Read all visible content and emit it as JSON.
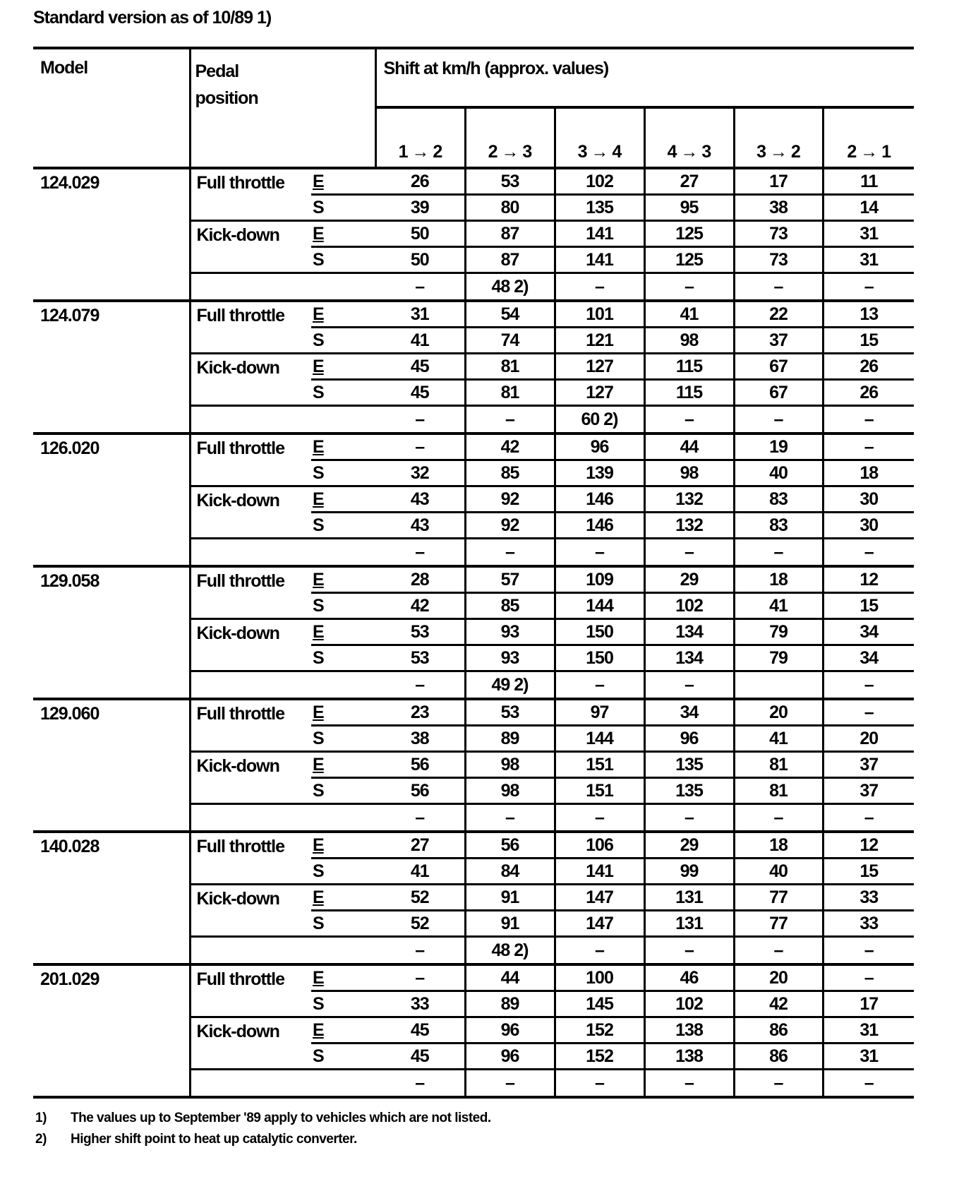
{
  "title": "Standard version as of 10/89 1)",
  "header": {
    "model": "Model",
    "pedal_line1": "Pedal",
    "pedal_line2": "position",
    "shift": "Shift at km/h (approx. values)",
    "columns": [
      "1 → 2",
      "2 → 3",
      "3 → 4",
      "4 → 3",
      "3 → 2",
      "2 → 1"
    ]
  },
  "pedal_labels": {
    "full": "Full throttle",
    "kick": "Kick-down"
  },
  "groups": [
    {
      "model": "124.029",
      "rows": [
        {
          "p": "full",
          "m": "E",
          "v": [
            "26",
            "53",
            "102",
            "27",
            "17",
            "11"
          ]
        },
        {
          "p": "",
          "m": "S",
          "v": [
            "39",
            "80",
            "135",
            "95",
            "38",
            "14"
          ]
        },
        {
          "p": "kick",
          "m": "E",
          "v": [
            "50",
            "87",
            "141",
            "125",
            "73",
            "31"
          ]
        },
        {
          "p": "",
          "m": "S",
          "v": [
            "50",
            "87",
            "141",
            "125",
            "73",
            "31"
          ]
        },
        {
          "p": "",
          "m": "",
          "v": [
            "–",
            "48 2)",
            "–",
            "–",
            "–",
            "–"
          ]
        }
      ]
    },
    {
      "model": "124.079",
      "rows": [
        {
          "p": "full",
          "m": "E",
          "v": [
            "31",
            "54",
            "101",
            "41",
            "22",
            "13"
          ]
        },
        {
          "p": "",
          "m": "S",
          "v": [
            "41",
            "74",
            "121",
            "98",
            "37",
            "15"
          ]
        },
        {
          "p": "kick",
          "m": "E",
          "v": [
            "45",
            "81",
            "127",
            "115",
            "67",
            "26"
          ]
        },
        {
          "p": "",
          "m": "S",
          "v": [
            "45",
            "81",
            "127",
            "115",
            "67",
            "26"
          ]
        },
        {
          "p": "",
          "m": "",
          "v": [
            "–",
            "–",
            "60 2)",
            "–",
            "–",
            "–"
          ]
        }
      ]
    },
    {
      "model": "126.020",
      "rows": [
        {
          "p": "full",
          "m": "E",
          "v": [
            "–",
            "42",
            "96",
            "44",
            "19",
            "–"
          ]
        },
        {
          "p": "",
          "m": "S",
          "v": [
            "32",
            "85",
            "139",
            "98",
            "40",
            "18"
          ]
        },
        {
          "p": "kick",
          "m": "E",
          "v": [
            "43",
            "92",
            "146",
            "132",
            "83",
            "30"
          ]
        },
        {
          "p": "",
          "m": "S",
          "v": [
            "43",
            "92",
            "146",
            "132",
            "83",
            "30"
          ]
        },
        {
          "p": "",
          "m": "",
          "v": [
            "–",
            "–",
            "–",
            "–",
            "–",
            "–"
          ]
        }
      ]
    },
    {
      "model": "129.058",
      "rows": [
        {
          "p": "full",
          "m": "E",
          "v": [
            "28",
            "57",
            "109",
            "29",
            "18",
            "12"
          ]
        },
        {
          "p": "",
          "m": "S",
          "v": [
            "42",
            "85",
            "144",
            "102",
            "41",
            "15"
          ]
        },
        {
          "p": "kick",
          "m": "E",
          "v": [
            "53",
            "93",
            "150",
            "134",
            "79",
            "34"
          ]
        },
        {
          "p": "",
          "m": "S",
          "v": [
            "53",
            "93",
            "150",
            "134",
            "79",
            "34"
          ]
        },
        {
          "p": "",
          "m": "",
          "v": [
            "–",
            "49 2)",
            "–",
            "–",
            "",
            "–"
          ]
        }
      ]
    },
    {
      "model": "129.060",
      "rows": [
        {
          "p": "full",
          "m": "E",
          "v": [
            "23",
            "53",
            "97",
            "34",
            "20",
            "–"
          ]
        },
        {
          "p": "",
          "m": "S",
          "v": [
            "38",
            "89",
            "144",
            "96",
            "41",
            "20"
          ]
        },
        {
          "p": "kick",
          "m": "E",
          "v": [
            "56",
            "98",
            "151",
            "135",
            "81",
            "37"
          ]
        },
        {
          "p": "",
          "m": "S",
          "v": [
            "56",
            "98",
            "151",
            "135",
            "81",
            "37"
          ]
        },
        {
          "p": "",
          "m": "",
          "v": [
            "–",
            "–",
            "–",
            "–",
            "–",
            "–"
          ]
        }
      ]
    },
    {
      "model": "140.028",
      "rows": [
        {
          "p": "full",
          "m": "E",
          "v": [
            "27",
            "56",
            "106",
            "29",
            "18",
            "12"
          ]
        },
        {
          "p": "",
          "m": "S",
          "v": [
            "41",
            "84",
            "141",
            "99",
            "40",
            "15"
          ]
        },
        {
          "p": "kick",
          "m": "E",
          "v": [
            "52",
            "91",
            "147",
            "131",
            "77",
            "33"
          ]
        },
        {
          "p": "",
          "m": "S",
          "v": [
            "52",
            "91",
            "147",
            "131",
            "77",
            "33"
          ]
        },
        {
          "p": "",
          "m": "",
          "v": [
            "–",
            "48 2)",
            "–",
            "–",
            "–",
            "–"
          ]
        }
      ]
    },
    {
      "model": "201.029",
      "rows": [
        {
          "p": "full",
          "m": "E",
          "v": [
            "–",
            "44",
            "100",
            "46",
            "20",
            "–"
          ]
        },
        {
          "p": "",
          "m": "S",
          "v": [
            "33",
            "89",
            "145",
            "102",
            "42",
            "17"
          ]
        },
        {
          "p": "kick",
          "m": "E",
          "v": [
            "45",
            "96",
            "152",
            "138",
            "86",
            "31"
          ]
        },
        {
          "p": "",
          "m": "S",
          "v": [
            "45",
            "96",
            "152",
            "138",
            "86",
            "31"
          ]
        },
        {
          "p": "",
          "m": "",
          "v": [
            "–",
            "–",
            "–",
            "–",
            "–",
            "–"
          ]
        }
      ]
    }
  ],
  "footnotes": [
    {
      "mark": "1)",
      "text": "The values up to September '89 apply to vehicles which are not listed."
    },
    {
      "mark": "2)",
      "text": "Higher shift point to heat up catalytic converter."
    }
  ]
}
